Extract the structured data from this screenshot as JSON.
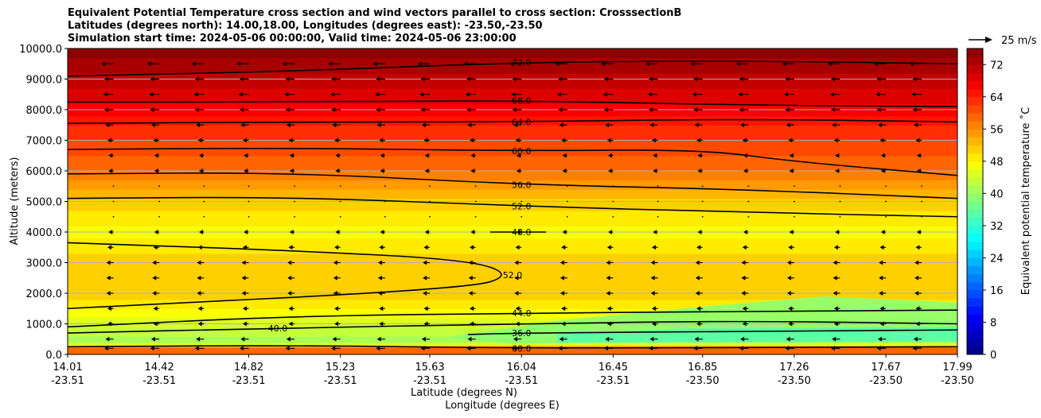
{
  "chart_data": {
    "type": "heatmap",
    "title": [
      "Equivalent Potential Temperature cross section and wind vectors parallel to cross section: CrosssectionB",
      "Latitudes (degrees north): 14.00,18.00, Longitudes (degrees east): -23.50,-23.50",
      "Simulation start time: 2024-05-06 00:00:00, Valid time: 2024-05-06 23:00:00"
    ],
    "xlabel": "Latitude (degrees N)",
    "xlabel2": "Longitude (degrees E)",
    "ylabel": "Altitude (meters)",
    "ylim": [
      0,
      10000
    ],
    "grid": true,
    "y_ticks": [
      "0.0",
      "1000.0",
      "2000.0",
      "3000.0",
      "4000.0",
      "5000.0",
      "6000.0",
      "7000.0",
      "8000.0",
      "9000.0",
      "10000.0"
    ],
    "y_tick_values": [
      0,
      1000,
      2000,
      3000,
      4000,
      5000,
      6000,
      7000,
      8000,
      9000,
      10000
    ],
    "x_ticks_lat": [
      "14.01",
      "14.42",
      "14.82",
      "15.23",
      "15.63",
      "16.04",
      "16.45",
      "16.85",
      "17.26",
      "17.67",
      "17.99"
    ],
    "x_ticks_lon": [
      "-23.51",
      "-23.51",
      "-23.51",
      "-23.51",
      "-23.51",
      "-23.51",
      "-23.51",
      "-23.50",
      "-23.50",
      "-23.50",
      "-23.50"
    ],
    "x_tick_values": [
      14.01,
      14.42,
      14.82,
      15.23,
      15.63,
      16.04,
      16.45,
      16.85,
      17.26,
      17.67,
      17.99
    ],
    "xlim": [
      14.01,
      17.99
    ],
    "colorbar": {
      "label": "Equivalent potential temperature ˚C",
      "ticks": [
        "0",
        "8",
        "16",
        "24",
        "32",
        "40",
        "48",
        "56",
        "64",
        "72"
      ],
      "tick_values": [
        0,
        8,
        16,
        24,
        32,
        40,
        48,
        56,
        64,
        72
      ],
      "range": [
        0,
        76
      ]
    },
    "quiver_key": "25 m/s",
    "theta_e_profile": [
      {
        "z": 0,
        "v": 56
      },
      {
        "z": 200,
        "v": 58
      },
      {
        "z": 400,
        "v": 40
      },
      {
        "z": 1000,
        "v": 45
      },
      {
        "z": 2000,
        "v": 51
      },
      {
        "z": 3000,
        "v": 51
      },
      {
        "z": 4000,
        "v": 47
      },
      {
        "z": 5000,
        "v": 51
      },
      {
        "z": 5500,
        "v": 55
      },
      {
        "z": 6000,
        "v": 58
      },
      {
        "z": 6500,
        "v": 60
      },
      {
        "z": 7000,
        "v": 62
      },
      {
        "z": 7500,
        "v": 64
      },
      {
        "z": 8000,
        "v": 67
      },
      {
        "z": 8500,
        "v": 69
      },
      {
        "z": 9000,
        "v": 71
      },
      {
        "z": 9500,
        "v": 73
      },
      {
        "z": 10000,
        "v": 76
      }
    ],
    "contours": [
      {
        "label": "72.0",
        "label_x": 16.04,
        "points": [
          [
            14.01,
            9100
          ],
          [
            15.0,
            9250
          ],
          [
            16.04,
            9550
          ],
          [
            17.0,
            9600
          ],
          [
            17.99,
            9500
          ]
        ]
      },
      {
        "label": "68.0",
        "label_x": 16.04,
        "points": [
          [
            14.01,
            8250
          ],
          [
            15.0,
            8250
          ],
          [
            16.04,
            8300
          ],
          [
            17.0,
            8150
          ],
          [
            17.99,
            8100
          ]
        ]
      },
      {
        "label": "64.0",
        "label_x": 16.04,
        "points": [
          [
            14.01,
            7550
          ],
          [
            15.0,
            7600
          ],
          [
            16.04,
            7600
          ],
          [
            17.0,
            7700
          ],
          [
            17.99,
            7600
          ]
        ]
      },
      {
        "label": "60.0",
        "label_x": 16.04,
        "points": [
          [
            14.01,
            6700
          ],
          [
            15.0,
            6750
          ],
          [
            16.04,
            6650
          ],
          [
            16.85,
            6700
          ],
          [
            17.26,
            6300
          ],
          [
            17.99,
            5850
          ]
        ]
      },
      {
        "label": "56.0",
        "label_x": 16.04,
        "points": [
          [
            14.01,
            5900
          ],
          [
            15.0,
            5950
          ],
          [
            16.04,
            5550
          ],
          [
            17.0,
            5400
          ],
          [
            17.99,
            5100
          ]
        ]
      },
      {
        "label": "52.0",
        "label_x": 16.04,
        "points": [
          [
            14.01,
            5100
          ],
          [
            15.0,
            5150
          ],
          [
            16.04,
            4850
          ],
          [
            17.0,
            4650
          ],
          [
            17.99,
            4500
          ]
        ]
      },
      {
        "label": "48.0",
        "label_x": 16.04,
        "points": [
          [
            15.9,
            4000
          ],
          [
            16.04,
            4000
          ],
          [
            16.15,
            4000
          ]
        ]
      },
      {
        "label": "52.0",
        "label_x": 16.0,
        "points": [
          [
            14.01,
            3650
          ],
          [
            15.0,
            3400
          ],
          [
            15.8,
            3100
          ],
          [
            16.0,
            2600
          ],
          [
            15.8,
            2150
          ],
          [
            14.01,
            1500
          ]
        ]
      },
      {
        "label": "44.0",
        "label_x": 16.04,
        "points": [
          [
            14.01,
            900
          ],
          [
            15.0,
            1250
          ],
          [
            16.04,
            1350
          ],
          [
            17.0,
            1400
          ],
          [
            17.99,
            1450
          ]
        ]
      },
      {
        "label": "40.0",
        "label_x": 14.95,
        "points": [
          [
            14.01,
            700
          ],
          [
            14.9,
            850
          ],
          [
            16.04,
            1000
          ],
          [
            17.0,
            1100
          ],
          [
            17.99,
            1000
          ]
        ]
      },
      {
        "label": "36.0",
        "label_x": 16.04,
        "points": [
          [
            15.8,
            650
          ],
          [
            16.04,
            700
          ],
          [
            17.0,
            750
          ],
          [
            17.99,
            800
          ]
        ]
      },
      {
        "label": "60.0",
        "label_x": 16.04,
        "points": [
          [
            14.01,
            250
          ],
          [
            15.0,
            300
          ],
          [
            16.04,
            200
          ],
          [
            17.99,
            250
          ]
        ]
      }
    ],
    "wind_vectors": [
      {
        "z": 9500,
        "u": -8
      },
      {
        "z": 9000,
        "u": -5
      },
      {
        "z": 8500,
        "u": -6
      },
      {
        "z": 8000,
        "u": -5
      },
      {
        "z": 7500,
        "u": -4
      },
      {
        "z": 7000,
        "u": -2
      },
      {
        "z": 6500,
        "u": -1
      },
      {
        "z": 6000,
        "u": -1
      },
      {
        "z": 5500,
        "u": 0
      },
      {
        "z": 5000,
        "u": 0
      },
      {
        "z": 4500,
        "u": 0
      },
      {
        "z": 4000,
        "u": -1
      },
      {
        "z": 3500,
        "u": -2
      },
      {
        "z": 3000,
        "u": -3
      },
      {
        "z": 2500,
        "u": -3
      },
      {
        "z": 2000,
        "u": -3
      },
      {
        "z": 1500,
        "u": -2
      },
      {
        "z": 1000,
        "u": -2
      },
      {
        "z": 500,
        "u": -4
      },
      {
        "z": 200,
        "u": -5
      }
    ]
  }
}
